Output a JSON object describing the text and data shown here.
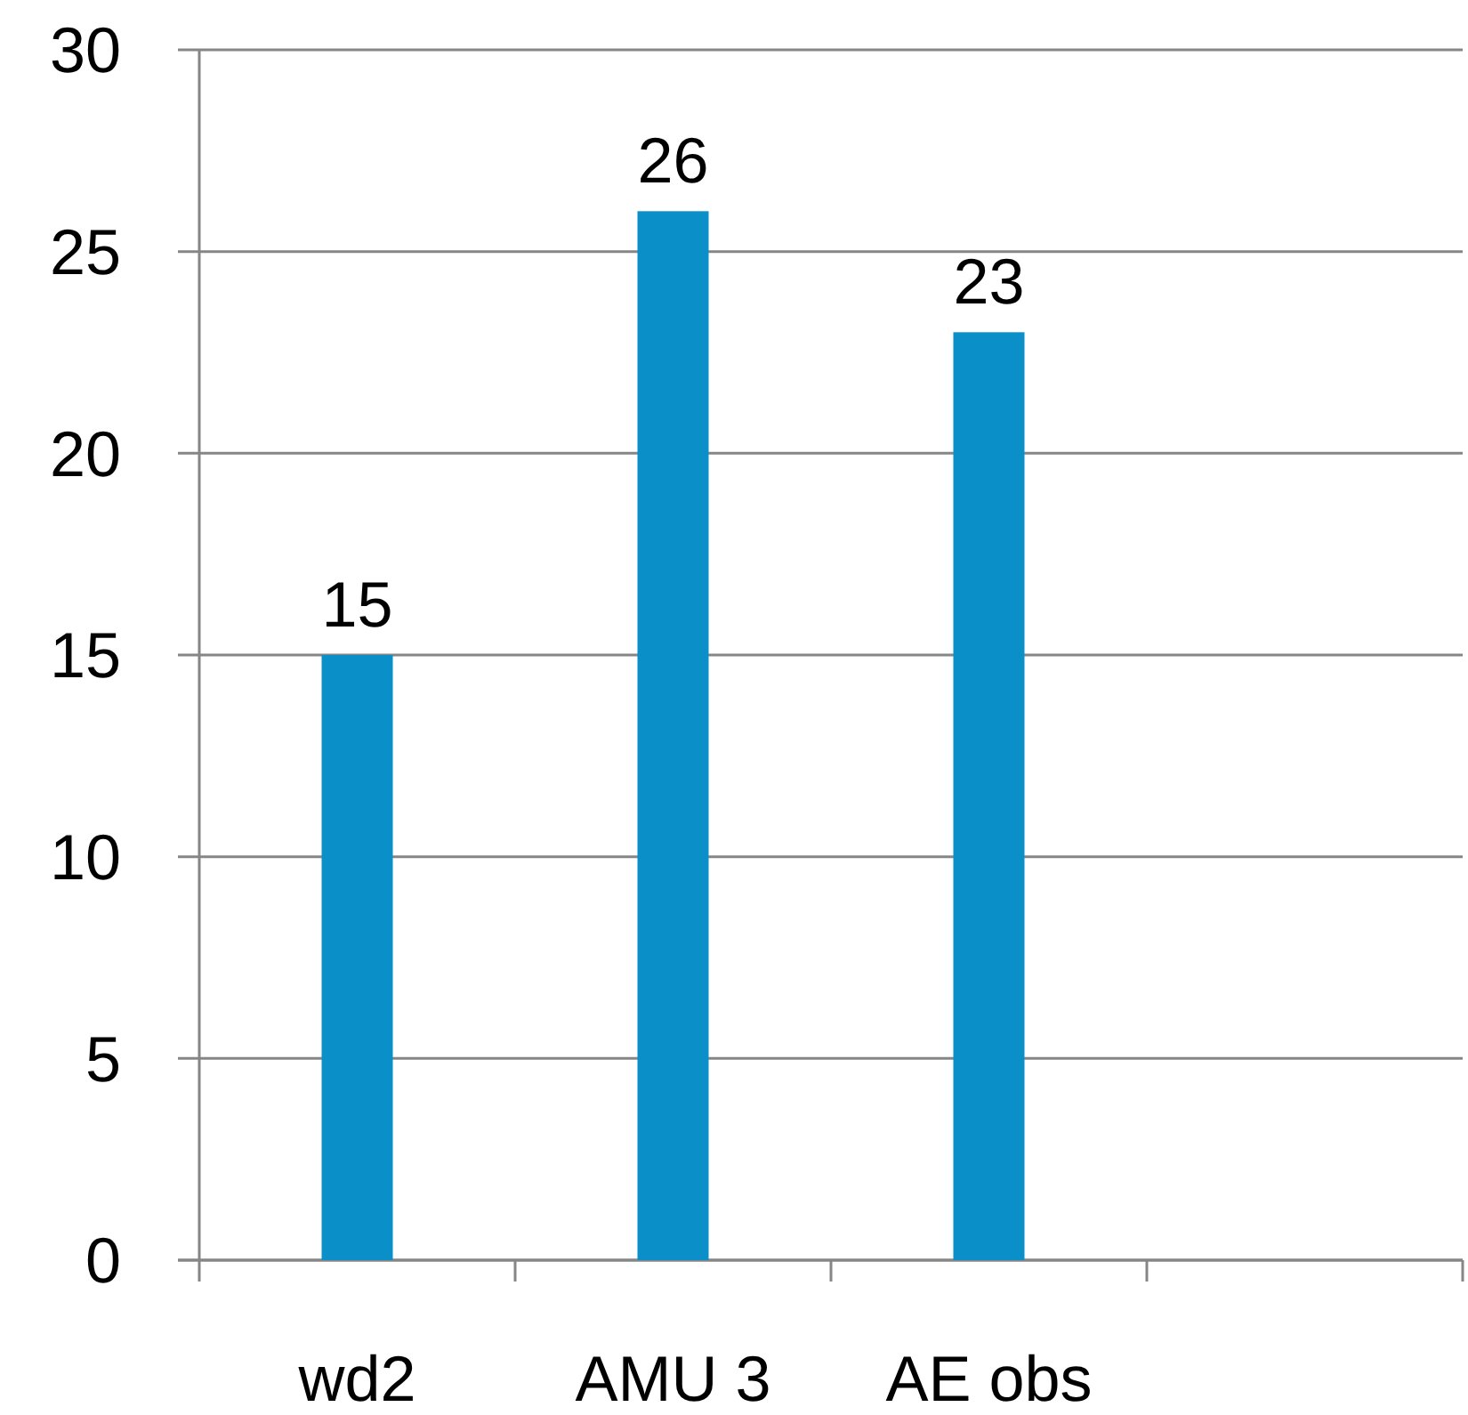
{
  "chart_data": {
    "type": "bar",
    "categories": [
      "wd2",
      "AMU 3",
      "AE obs",
      null
    ],
    "values": [
      15,
      26,
      23,
      null
    ],
    "color": "#0a8fc8",
    "ylim": [
      0,
      30
    ],
    "yticks": [
      0,
      5,
      10,
      15,
      20,
      25,
      30
    ],
    "grid": "y",
    "data_labels": true
  }
}
